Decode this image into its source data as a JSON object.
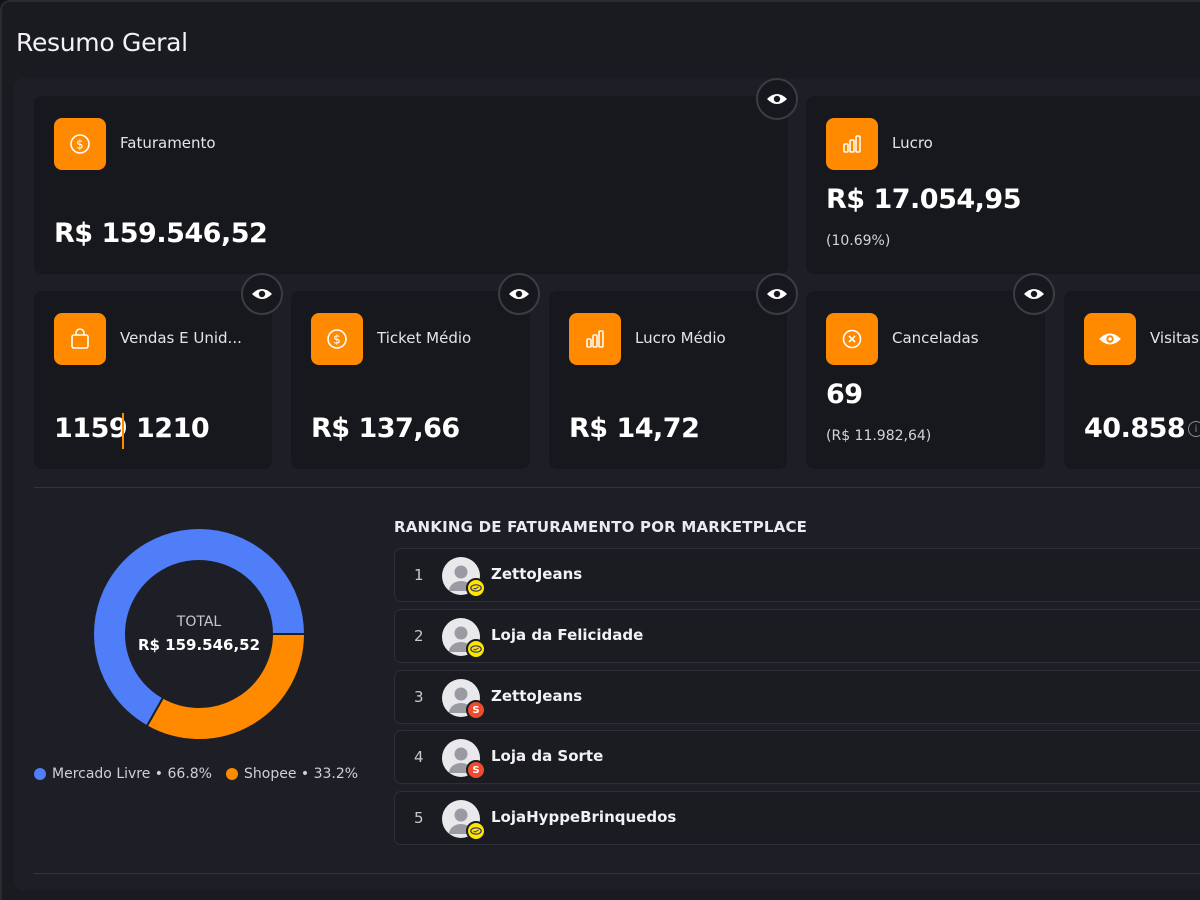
{
  "header": {
    "title": "Resumo Geral"
  },
  "cards": {
    "faturamento": {
      "label": "Faturamento",
      "value": "R$ 159.546,52",
      "icon": "dollar-icon"
    },
    "lucro": {
      "label": "Lucro",
      "value": "R$ 17.054,95",
      "sub": "(10.69%)",
      "icon": "bar-chart-icon"
    },
    "vendas": {
      "label": "Vendas E Unid...",
      "value_a": "1159",
      "value_b": "1210",
      "icon": "shopping-bag-icon"
    },
    "ticket": {
      "label": "Ticket Médio",
      "value": "R$ 137,66",
      "icon": "dollar-icon"
    },
    "lucro_medio": {
      "label": "Lucro Médio",
      "value": "R$ 14,72",
      "icon": "bar-chart-icon"
    },
    "canceladas": {
      "label": "Canceladas",
      "value": "69",
      "sub": "(R$ 11.982,64)",
      "icon": "cancel-circle-icon"
    },
    "visitas": {
      "label": "Visitas",
      "value": "40.858",
      "icon": "eye-icon"
    }
  },
  "donut": {
    "total_label": "TOTAL",
    "total_value": "R$ 159.546,52",
    "legend": [
      {
        "label": "Mercado Livre • 66.8%"
      },
      {
        "label": "Shopee • 33.2%"
      }
    ]
  },
  "chart_data": {
    "type": "pie",
    "title": "",
    "categories": [
      "Mercado Livre",
      "Shopee"
    ],
    "values": [
      66.8,
      33.2
    ],
    "colors": [
      "#4f7ef8",
      "#ff8a00"
    ],
    "legend_position": "bottom"
  },
  "ranking": {
    "title": "RANKING DE FATURAMENTO POR MARKETPLACE",
    "rows": [
      {
        "pos": "1",
        "name": "ZettoJeans",
        "marketplace": "mercado-livre"
      },
      {
        "pos": "2",
        "name": "Loja da Felicidade",
        "marketplace": "mercado-livre"
      },
      {
        "pos": "3",
        "name": "ZettoJeans",
        "marketplace": "shopee"
      },
      {
        "pos": "4",
        "name": "Loja da Sorte",
        "marketplace": "shopee"
      },
      {
        "pos": "5",
        "name": "LojaHyppeBrinquedos",
        "marketplace": "mercado-livre"
      }
    ]
  },
  "colors": {
    "accent": "#ff8a00",
    "blue": "#4f7ef8",
    "card_bg": "#17181d",
    "panel_bg": "#1e1f26"
  }
}
